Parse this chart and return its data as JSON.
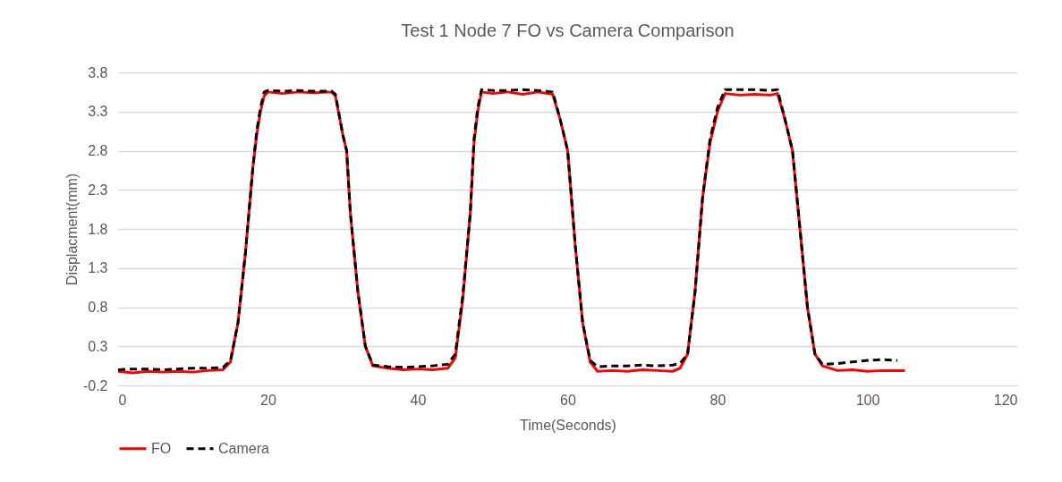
{
  "chart_data": {
    "type": "line",
    "title": "Test 1 Node 7 FO vs Camera Comparison",
    "xlabel": "Time(Seconds)",
    "ylabel": "Displacment(mm)",
    "xlim": [
      0,
      120
    ],
    "xticks": [
      0,
      20,
      40,
      60,
      80,
      100,
      120
    ],
    "ylim": [
      -0.2,
      3.8
    ],
    "yticks": [
      -0.2,
      0.3,
      0.8,
      1.3,
      1.8,
      2.3,
      2.8,
      3.3,
      3.8
    ],
    "grid": "y",
    "legend": "bottom left",
    "marker": "none",
    "series": [
      {
        "name": "FO",
        "color": "#ff0000",
        "line_style": "solid",
        "x": [
          0,
          2,
          4,
          6,
          8,
          10,
          12,
          14,
          15,
          16,
          17,
          18,
          18.5,
          19,
          19.5,
          20,
          22,
          24,
          26,
          28.5,
          29,
          30,
          30.5,
          31,
          32,
          33,
          34,
          36,
          38,
          40,
          42,
          44,
          45,
          46,
          47,
          47.5,
          48,
          48.5,
          50,
          52,
          54,
          56,
          58,
          59,
          60,
          61,
          62,
          63,
          64,
          66,
          68,
          70,
          72,
          74,
          75,
          76,
          77,
          78,
          79,
          80,
          81,
          83,
          85,
          87,
          88,
          89,
          90,
          91,
          92,
          93,
          94,
          96,
          98,
          100,
          102,
          105
        ],
        "values": [
          -0.02,
          -0.04,
          -0.02,
          -0.03,
          -0.02,
          -0.03,
          -0.01,
          0,
          0.1,
          0.6,
          1.5,
          2.6,
          3.0,
          3.3,
          3.5,
          3.55,
          3.53,
          3.55,
          3.54,
          3.55,
          3.5,
          3.0,
          2.8,
          2.0,
          1.0,
          0.3,
          0.05,
          0.02,
          0,
          0.01,
          0,
          0.02,
          0.15,
          0.9,
          2.0,
          2.9,
          3.3,
          3.55,
          3.53,
          3.55,
          3.52,
          3.55,
          3.52,
          3.2,
          2.8,
          1.6,
          0.6,
          0.1,
          -0.02,
          -0.01,
          -0.02,
          0,
          -0.01,
          -0.02,
          0.02,
          0.2,
          1.0,
          2.2,
          2.9,
          3.3,
          3.53,
          3.51,
          3.52,
          3.51,
          3.53,
          3.2,
          2.8,
          1.8,
          0.8,
          0.2,
          0.05,
          -0.01,
          0,
          -0.02,
          -0.01,
          -0.01
        ]
      },
      {
        "name": "Camera",
        "color": "#000000",
        "line_style": "dashed",
        "x": [
          0,
          2,
          4,
          6,
          8,
          10,
          12,
          14,
          15,
          16,
          17,
          18,
          18.5,
          19,
          19.5,
          20,
          22,
          24,
          26,
          28.5,
          29,
          30,
          30.5,
          31,
          32,
          33,
          34,
          36,
          38,
          40,
          42,
          44,
          45,
          46,
          47,
          47.5,
          48,
          48.5,
          50,
          52,
          54,
          56,
          58,
          59,
          60,
          61,
          62,
          63,
          64,
          66,
          68,
          70,
          72,
          74,
          75,
          76,
          77,
          78,
          79,
          80,
          81,
          83,
          85,
          87,
          88,
          89,
          90,
          91,
          92,
          93,
          94,
          96,
          98,
          100,
          102,
          104
        ],
        "values": [
          0,
          0.01,
          0.01,
          0,
          0.01,
          0.02,
          0.02,
          0.03,
          0.12,
          0.6,
          1.5,
          2.6,
          3.05,
          3.35,
          3.55,
          3.57,
          3.56,
          3.57,
          3.56,
          3.56,
          3.52,
          3.0,
          2.8,
          2.0,
          1.0,
          0.3,
          0.06,
          0.04,
          0.03,
          0.04,
          0.05,
          0.07,
          0.2,
          0.95,
          2.0,
          2.95,
          3.35,
          3.58,
          3.57,
          3.57,
          3.58,
          3.57,
          3.55,
          3.2,
          2.8,
          1.6,
          0.6,
          0.12,
          0.04,
          0.05,
          0.05,
          0.06,
          0.05,
          0.06,
          0.08,
          0.2,
          1.0,
          2.2,
          2.95,
          3.35,
          3.58,
          3.58,
          3.58,
          3.57,
          3.58,
          3.2,
          2.8,
          1.8,
          0.8,
          0.2,
          0.07,
          0.08,
          0.1,
          0.12,
          0.13,
          0.12
        ]
      }
    ]
  }
}
